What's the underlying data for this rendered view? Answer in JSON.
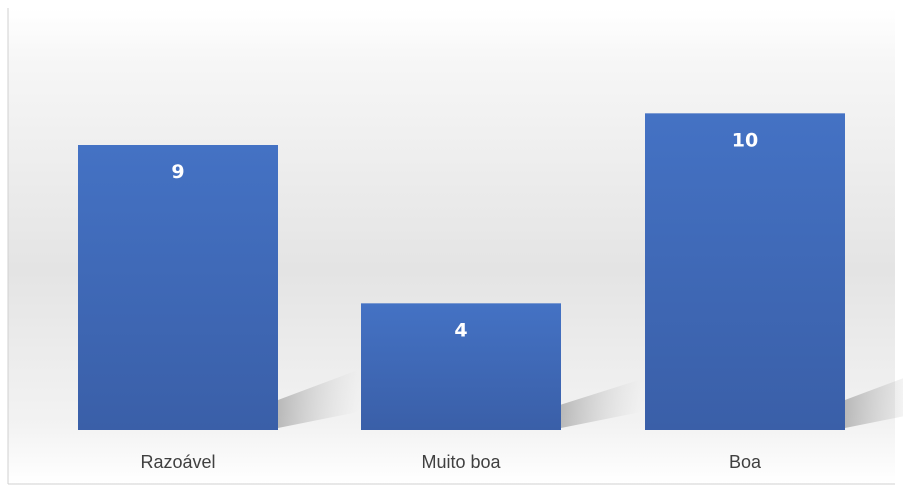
{
  "chart_data": {
    "type": "bar",
    "categories": [
      "Razoável",
      "Muito boa",
      "Boa"
    ],
    "values": [
      9,
      4,
      10
    ],
    "data_labels": [
      "9",
      "4",
      "10"
    ],
    "title": "",
    "xlabel": "",
    "ylabel": "",
    "ylim": [
      0,
      11
    ],
    "grid": false,
    "legend": "none",
    "colors": {
      "bar_top": "#4472C4",
      "bar_bottom": "#3A5FA8",
      "background_top": "#FFFFFF",
      "background_mid": "#E6E6E6",
      "label_text": "#FFFFFF",
      "category_text": "#404040",
      "frame": "#D0D0D0"
    }
  }
}
